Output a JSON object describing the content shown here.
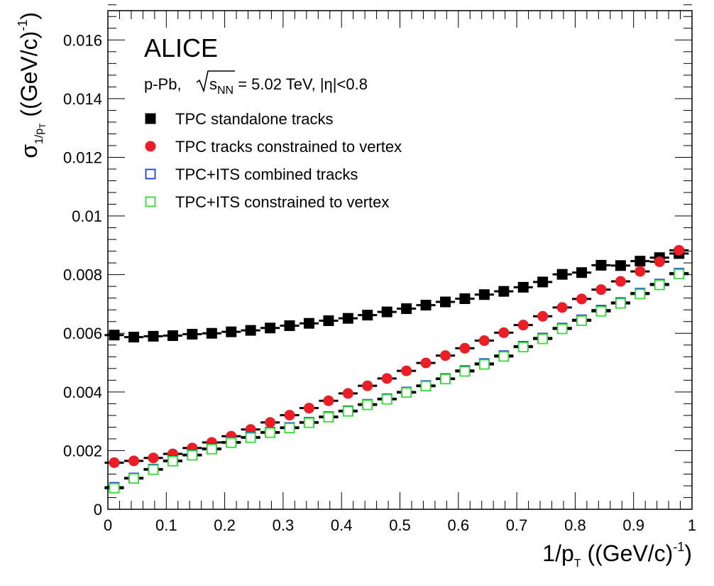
{
  "chart_data": {
    "type": "scatter",
    "experiment": "ALICE",
    "system_text": {
      "prefix": "p-Pb, ",
      "sqrt_s": "s",
      "sqrt_s_sub": "NN",
      "energy": " = 5.02 TeV, |η|<0.8"
    },
    "xlabel": {
      "main": "1/p",
      "sub": "T",
      "units": " ((GeV/c)",
      "exp": "-1",
      "close": ")"
    },
    "ylabel": {
      "main": "σ",
      "sub": "1/p",
      "subsub": "T",
      "units": " ((GeV/c)",
      "exp": "-1",
      "close": ")"
    },
    "xlim": [
      0,
      1
    ],
    "ylim": [
      0,
      0.017
    ],
    "x_ticks": [
      "0",
      "0.1",
      "0.2",
      "0.3",
      "0.4",
      "0.5",
      "0.6",
      "0.7",
      "0.8",
      "0.9",
      "1"
    ],
    "x_tick_values": [
      0,
      0.1,
      0.2,
      0.3,
      0.4,
      0.5,
      0.6,
      0.7,
      0.8,
      0.9,
      1
    ],
    "y_ticks": [
      "0",
      "0.002",
      "0.004",
      "0.006",
      "0.008",
      "0.01",
      "0.012",
      "0.014",
      "0.016"
    ],
    "y_tick_values": [
      0,
      0.002,
      0.004,
      0.006,
      0.008,
      0.01,
      0.012,
      0.014,
      0.016
    ],
    "x_error_halfwidth": 0.0165,
    "x": [
      0.0109,
      0.0444,
      0.0778,
      0.1111,
      0.1444,
      0.1778,
      0.2111,
      0.2444,
      0.2778,
      0.3111,
      0.3444,
      0.3778,
      0.4111,
      0.4444,
      0.4778,
      0.5111,
      0.5444,
      0.5778,
      0.6111,
      0.6444,
      0.6778,
      0.7111,
      0.7444,
      0.7778,
      0.8111,
      0.8444,
      0.8778,
      0.9111,
      0.9444,
      0.9778
    ],
    "series": [
      {
        "name": "TPC standalone tracks",
        "marker": "filled-square",
        "color": "#000000",
        "values": [
          0.00594,
          0.00587,
          0.0059,
          0.00592,
          0.00597,
          0.006,
          0.00605,
          0.0061,
          0.00618,
          0.00626,
          0.00634,
          0.00643,
          0.00651,
          0.00662,
          0.00673,
          0.00684,
          0.00696,
          0.00707,
          0.00718,
          0.00732,
          0.00743,
          0.00757,
          0.00775,
          0.00801,
          0.00807,
          0.00832,
          0.00831,
          0.00846,
          0.00858,
          0.00872
        ]
      },
      {
        "name": "TPC tracks constrained to vertex",
        "marker": "filled-circle",
        "color": "#ee1c25",
        "values": [
          0.00159,
          0.00165,
          0.00175,
          0.00189,
          0.00209,
          0.00228,
          0.00249,
          0.00272,
          0.00296,
          0.00321,
          0.00345,
          0.0037,
          0.00395,
          0.00421,
          0.00446,
          0.00472,
          0.00499,
          0.00524,
          0.00549,
          0.00575,
          0.00602,
          0.00628,
          0.00658,
          0.00688,
          0.00717,
          0.00749,
          0.00777,
          0.00811,
          0.00844,
          0.00883
        ]
      },
      {
        "name": "TPC+ITS combined tracks",
        "marker": "open-square",
        "color": "#1a3fd6",
        "values": [
          0.00075,
          0.00107,
          0.00137,
          0.00166,
          0.00186,
          0.00207,
          0.00229,
          0.00246,
          0.00263,
          0.00279,
          0.00297,
          0.00316,
          0.00336,
          0.00358,
          0.00377,
          0.004,
          0.00422,
          0.00446,
          0.00473,
          0.00497,
          0.00524,
          0.00556,
          0.00584,
          0.00618,
          0.00646,
          0.00679,
          0.00705,
          0.00737,
          0.00768,
          0.00805
        ]
      },
      {
        "name": "TPC+ITS constrained to vertex",
        "marker": "open-square",
        "color": "#33dd33",
        "values": [
          0.00072,
          0.00105,
          0.00135,
          0.00164,
          0.00184,
          0.00205,
          0.00227,
          0.00244,
          0.00261,
          0.00277,
          0.00295,
          0.00314,
          0.00334,
          0.00356,
          0.00375,
          0.00398,
          0.0042,
          0.00444,
          0.0047,
          0.00494,
          0.00521,
          0.00553,
          0.00581,
          0.00615,
          0.00643,
          0.00675,
          0.00702,
          0.00734,
          0.00765,
          0.00802
        ]
      }
    ]
  }
}
